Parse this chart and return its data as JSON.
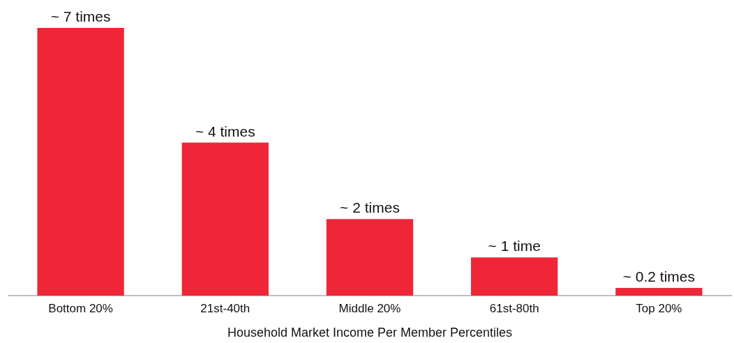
{
  "chart_data": {
    "type": "bar",
    "xlabel": "Household Market Income Per Member Percentiles",
    "categories": [
      "Bottom 20%",
      "21st-40th",
      "Middle 20%",
      "61st-80th",
      "Top 20%"
    ],
    "values": [
      7,
      4,
      2,
      1,
      0.2
    ],
    "value_labels": [
      "~ 7 times",
      "~ 4 times",
      "~ 2 times",
      "~ 1 time",
      "~ 0.2 times"
    ],
    "color": "#ee2638"
  }
}
